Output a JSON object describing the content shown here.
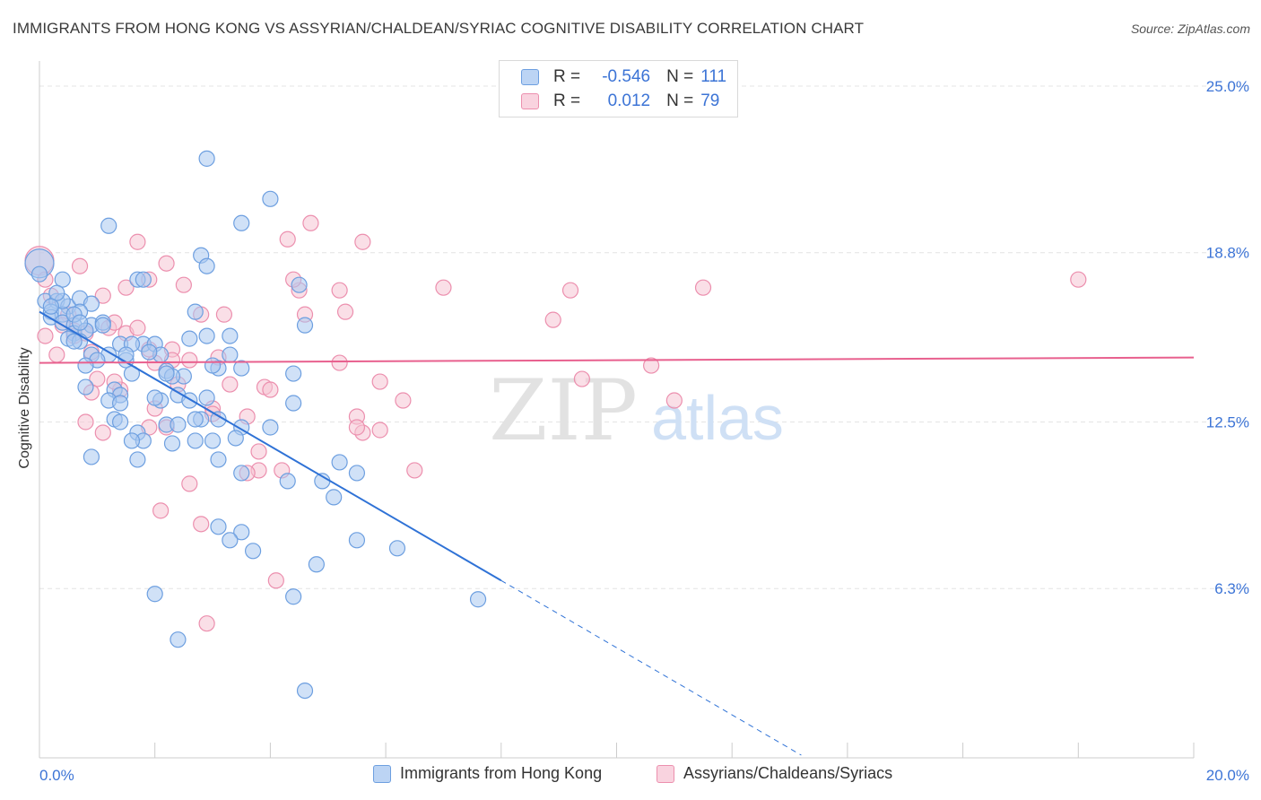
{
  "title": "IMMIGRANTS FROM HONG KONG VS ASSYRIAN/CHALDEAN/SYRIAC COGNITIVE DISABILITY CORRELATION CHART",
  "source": "Source: ZipAtlas.com",
  "watermark": {
    "zip": "ZIP",
    "atlas": "atlas"
  },
  "legend": {
    "rows": [
      {
        "r_label": "R =",
        "r_value": "-0.546",
        "n_label": "N =",
        "n_value": "111"
      },
      {
        "r_label": "R =",
        "r_value": "0.012",
        "n_label": "N =",
        "n_value": "79"
      }
    ]
  },
  "colors": {
    "blue_fill": "#a9c8f0",
    "blue_stroke": "#6d9fe0",
    "blue_line": "#2f72d6",
    "pink_fill": "#f6c4d4",
    "pink_stroke": "#ec8fae",
    "pink_line": "#e8608e",
    "axis_label": "#3c74d6",
    "grid": "#e4e4e4"
  },
  "chart_data": {
    "type": "scatter",
    "title": "IMMIGRANTS FROM HONG KONG VS ASSYRIAN/CHALDEAN/SYRIAC COGNITIVE DISABILITY CORRELATION CHART",
    "xlabel": "",
    "ylabel": "Cognitive Disability",
    "xlim": [
      0,
      20
    ],
    "ylim": [
      0,
      25.6
    ],
    "x_tick_labels": [
      "0.0%",
      "20.0%"
    ],
    "y_ticks": [
      6.3,
      12.5,
      18.8,
      25.0
    ],
    "y_tick_labels": [
      "6.3%",
      "12.5%",
      "18.8%",
      "25.0%"
    ],
    "grid": true,
    "legend_position": "top-center",
    "series": [
      {
        "name": "Immigrants from Hong Kong",
        "color": "#a9c8f0",
        "trend": {
          "x": [
            0,
            8.0
          ],
          "y": [
            16.6,
            6.6
          ],
          "extended_to_x": 13.2
        },
        "points": [
          [
            0.0,
            18.4
          ],
          [
            0.0,
            18.0
          ],
          [
            0.4,
            17.8
          ],
          [
            0.1,
            17.0
          ],
          [
            0.3,
            17.0
          ],
          [
            0.5,
            16.8
          ],
          [
            0.7,
            17.1
          ],
          [
            0.9,
            16.9
          ],
          [
            0.2,
            16.6
          ],
          [
            0.4,
            16.5
          ],
          [
            0.7,
            16.6
          ],
          [
            0.2,
            16.4
          ],
          [
            0.4,
            16.2
          ],
          [
            0.6,
            16.1
          ],
          [
            0.9,
            16.1
          ],
          [
            1.1,
            16.2
          ],
          [
            0.6,
            15.8
          ],
          [
            0.8,
            15.9
          ],
          [
            0.5,
            15.6
          ],
          [
            0.7,
            15.5
          ],
          [
            1.4,
            15.4
          ],
          [
            1.8,
            15.4
          ],
          [
            2.0,
            15.4
          ],
          [
            2.1,
            15.0
          ],
          [
            2.6,
            15.6
          ],
          [
            2.9,
            15.7
          ],
          [
            3.3,
            15.7
          ],
          [
            0.9,
            15.0
          ],
          [
            1.2,
            15.0
          ],
          [
            1.5,
            14.8
          ],
          [
            1.0,
            14.8
          ],
          [
            0.8,
            14.6
          ],
          [
            1.6,
            14.3
          ],
          [
            2.2,
            14.4
          ],
          [
            2.5,
            14.2
          ],
          [
            3.1,
            14.5
          ],
          [
            3.5,
            14.5
          ],
          [
            4.4,
            14.3
          ],
          [
            2.3,
            14.2
          ],
          [
            0.8,
            13.8
          ],
          [
            1.3,
            13.7
          ],
          [
            1.4,
            13.5
          ],
          [
            1.2,
            13.3
          ],
          [
            1.4,
            13.2
          ],
          [
            2.1,
            13.3
          ],
          [
            2.0,
            13.4
          ],
          [
            2.4,
            13.5
          ],
          [
            2.6,
            13.3
          ],
          [
            4.4,
            13.2
          ],
          [
            1.3,
            12.6
          ],
          [
            1.4,
            12.5
          ],
          [
            2.2,
            12.4
          ],
          [
            2.4,
            12.4
          ],
          [
            2.8,
            12.6
          ],
          [
            3.1,
            12.6
          ],
          [
            3.5,
            12.3
          ],
          [
            4.0,
            12.3
          ],
          [
            1.7,
            12.1
          ],
          [
            1.8,
            11.8
          ],
          [
            1.6,
            11.8
          ],
          [
            2.3,
            11.7
          ],
          [
            2.7,
            11.8
          ],
          [
            3.0,
            11.8
          ],
          [
            3.4,
            11.9
          ],
          [
            0.9,
            11.2
          ],
          [
            1.7,
            11.1
          ],
          [
            3.1,
            11.1
          ],
          [
            3.5,
            10.6
          ],
          [
            4.3,
            10.3
          ],
          [
            5.2,
            11.0
          ],
          [
            5.5,
            10.6
          ],
          [
            4.9,
            10.3
          ],
          [
            5.1,
            9.7
          ],
          [
            3.1,
            8.6
          ],
          [
            3.5,
            8.4
          ],
          [
            3.3,
            8.1
          ],
          [
            3.7,
            7.7
          ],
          [
            5.5,
            8.1
          ],
          [
            6.2,
            7.8
          ],
          [
            4.8,
            7.2
          ],
          [
            2.0,
            6.1
          ],
          [
            4.4,
            6.0
          ],
          [
            7.6,
            5.9
          ],
          [
            2.4,
            4.4
          ],
          [
            4.6,
            2.5
          ],
          [
            2.9,
            22.3
          ],
          [
            3.5,
            19.9
          ],
          [
            4.0,
            20.8
          ],
          [
            1.2,
            19.8
          ],
          [
            2.8,
            18.7
          ],
          [
            2.9,
            18.3
          ],
          [
            1.7,
            17.8
          ],
          [
            1.8,
            17.8
          ],
          [
            4.5,
            17.6
          ],
          [
            2.7,
            16.6
          ],
          [
            4.6,
            16.1
          ],
          [
            1.1,
            16.1
          ],
          [
            0.4,
            17.0
          ],
          [
            0.6,
            16.5
          ],
          [
            0.3,
            17.3
          ],
          [
            1.6,
            15.4
          ],
          [
            1.5,
            15.0
          ],
          [
            1.9,
            15.1
          ],
          [
            2.2,
            14.3
          ],
          [
            2.9,
            13.4
          ],
          [
            2.7,
            12.6
          ],
          [
            3.0,
            14.6
          ],
          [
            3.3,
            15.0
          ],
          [
            0.7,
            16.2
          ],
          [
            0.2,
            16.8
          ],
          [
            0.6,
            15.5
          ]
        ]
      },
      {
        "name": "Assyrians/Chaldeans/Syriacs",
        "color": "#f6c4d4",
        "trend": {
          "x": [
            0,
            20
          ],
          "y": [
            14.7,
            14.9
          ]
        },
        "points": [
          [
            0.0,
            18.5
          ],
          [
            0.1,
            17.8
          ],
          [
            0.7,
            18.3
          ],
          [
            0.2,
            17.2
          ],
          [
            0.1,
            15.7
          ],
          [
            0.3,
            15.0
          ],
          [
            0.5,
            16.5
          ],
          [
            0.6,
            15.9
          ],
          [
            0.8,
            15.8
          ],
          [
            0.9,
            15.1
          ],
          [
            1.1,
            17.2
          ],
          [
            1.2,
            16.0
          ],
          [
            1.3,
            16.2
          ],
          [
            1.5,
            15.8
          ],
          [
            1.5,
            17.5
          ],
          [
            1.7,
            16.0
          ],
          [
            1.9,
            17.8
          ],
          [
            2.2,
            18.4
          ],
          [
            1.7,
            19.2
          ],
          [
            2.0,
            14.7
          ],
          [
            2.3,
            15.2
          ],
          [
            2.4,
            13.9
          ],
          [
            2.5,
            17.6
          ],
          [
            2.6,
            14.8
          ],
          [
            2.8,
            16.5
          ],
          [
            3.2,
            16.5
          ],
          [
            3.1,
            14.9
          ],
          [
            3.3,
            13.9
          ],
          [
            3.6,
            12.7
          ],
          [
            3.9,
            13.8
          ],
          [
            3.8,
            10.7
          ],
          [
            3.6,
            10.6
          ],
          [
            3.8,
            11.4
          ],
          [
            4.0,
            13.7
          ],
          [
            4.3,
            19.3
          ],
          [
            4.5,
            17.4
          ],
          [
            4.4,
            17.8
          ],
          [
            4.6,
            16.5
          ],
          [
            4.7,
            19.9
          ],
          [
            5.2,
            14.7
          ],
          [
            5.3,
            16.6
          ],
          [
            5.2,
            17.4
          ],
          [
            5.5,
            12.7
          ],
          [
            5.6,
            12.1
          ],
          [
            5.5,
            12.3
          ],
          [
            5.6,
            19.2
          ],
          [
            5.9,
            12.2
          ],
          [
            5.9,
            14.0
          ],
          [
            6.3,
            13.3
          ],
          [
            6.5,
            10.7
          ],
          [
            7.0,
            17.5
          ],
          [
            3.0,
            13.0
          ],
          [
            3.0,
            12.8
          ],
          [
            2.0,
            13.0
          ],
          [
            1.9,
            12.3
          ],
          [
            1.4,
            13.7
          ],
          [
            1.3,
            14.0
          ],
          [
            1.0,
            14.1
          ],
          [
            0.9,
            13.6
          ],
          [
            0.8,
            12.5
          ],
          [
            1.1,
            12.1
          ],
          [
            2.2,
            12.3
          ],
          [
            2.6,
            10.2
          ],
          [
            2.8,
            8.7
          ],
          [
            2.1,
            9.2
          ],
          [
            2.9,
            5.0
          ],
          [
            4.1,
            6.6
          ],
          [
            4.2,
            10.7
          ],
          [
            9.2,
            17.4
          ],
          [
            8.9,
            16.3
          ],
          [
            9.4,
            14.1
          ],
          [
            10.6,
            14.6
          ],
          [
            11.0,
            13.3
          ],
          [
            11.5,
            17.5
          ],
          [
            18.0,
            17.8
          ],
          [
            1.9,
            15.2
          ],
          [
            2.3,
            14.8
          ],
          [
            0.4,
            16.1
          ],
          [
            0.6,
            15.7
          ]
        ]
      }
    ]
  }
}
